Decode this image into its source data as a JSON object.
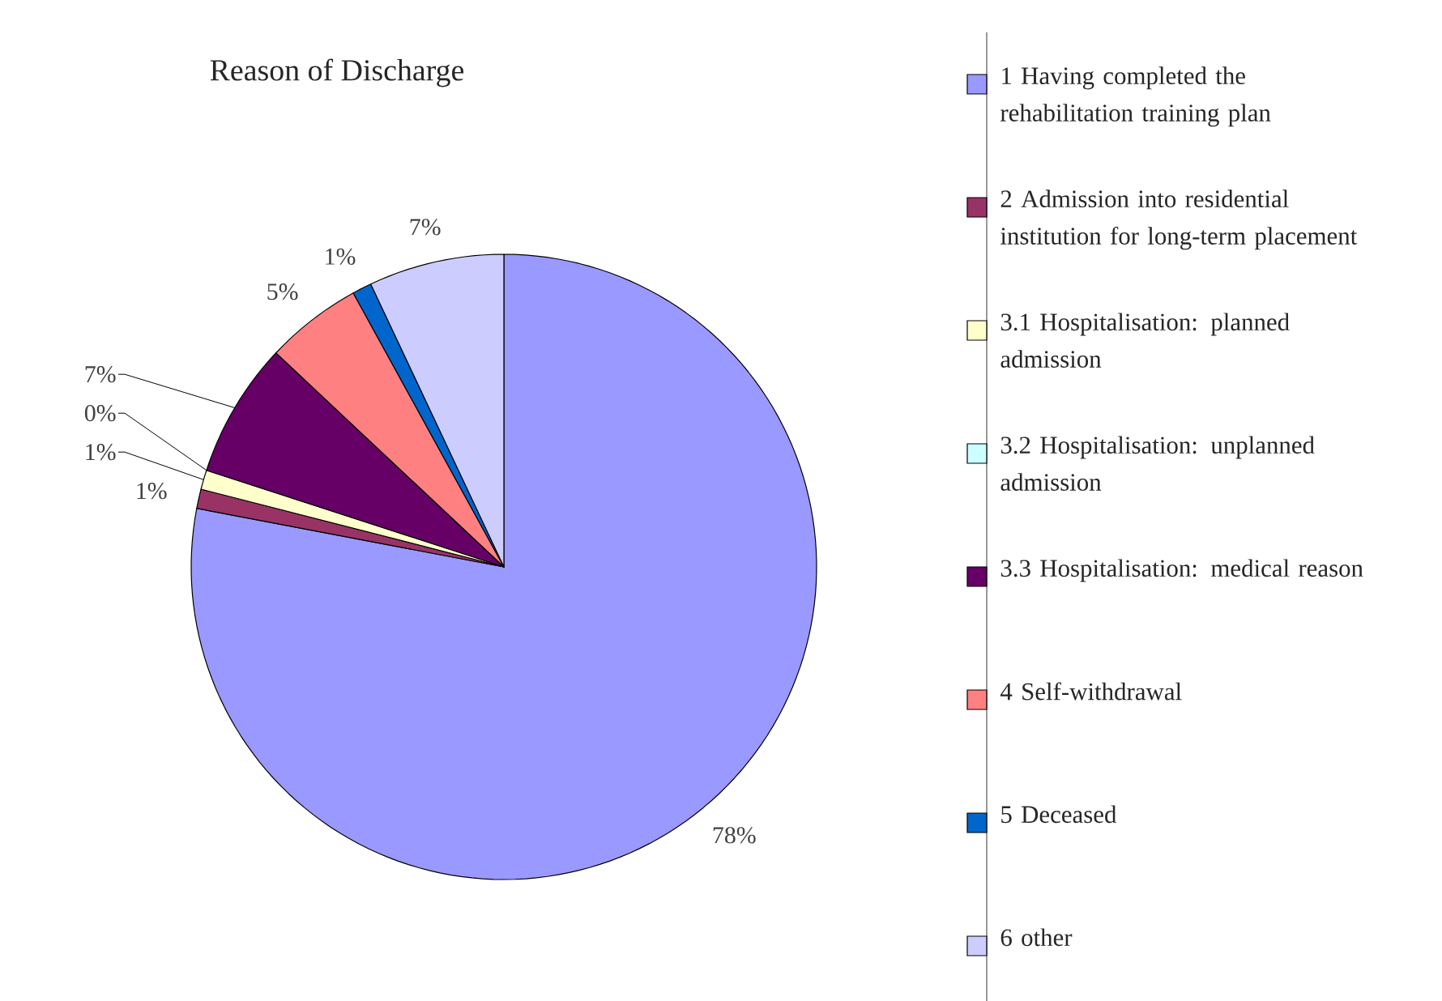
{
  "chart_data": {
    "type": "pie",
    "title": "Reason of Discharge",
    "categories": [
      "1 Having completed the rehabilitation training plan",
      "2 Admission into residential institution for long-term placement",
      "3.1 Hospitalisation: planned admission",
      "3.2 Hospitalisation: unplanned admission",
      "3.3 Hospitalisation: medical reason",
      "4 Self-withdrawal",
      "5 Deceased",
      "6 other"
    ],
    "values": [
      78,
      1,
      1,
      0,
      7,
      5,
      1,
      7
    ],
    "value_labels": [
      "78%",
      "1%",
      "1%",
      "0%",
      "7%",
      "5%",
      "1%",
      "7%"
    ],
    "colors": [
      "#9999ff",
      "#993366",
      "#ffffcc",
      "#ccffff",
      "#660066",
      "#ff8080",
      "#0066cc",
      "#ccccff"
    ],
    "legend": "right"
  }
}
